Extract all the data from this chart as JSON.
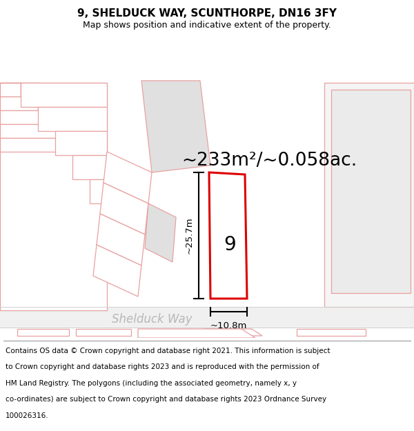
{
  "title_line1": "9, SHELDUCK WAY, SCUNTHORPE, DN16 3FY",
  "title_line2": "Map shows position and indicative extent of the property.",
  "area_text": "~233m²/~0.058ac.",
  "plot_number": "9",
  "street_name": "Shelduck Way",
  "dim_vertical": "~25.7m",
  "dim_horizontal": "~10.8m",
  "copyright_lines": [
    "Contains OS data © Crown copyright and database right 2021. This information is subject",
    "to Crown copyright and database rights 2023 and is reproduced with the permission of",
    "HM Land Registry. The polygons (including the associated geometry, namely x, y",
    "co-ordinates) are subject to Crown copyright and database rights 2023 Ordnance Survey",
    "100026316."
  ],
  "background_color": "#ffffff",
  "road_color": "#f0f0f0",
  "plot_fill": "#ffffff",
  "plot_border_color": "#dd0000",
  "block_fill": "#f0f0f0",
  "block_fill_dark": "#e0e0e0",
  "block_border": "#e8a0a0",
  "title_fontsize": 11,
  "subtitle_fontsize": 9,
  "area_fontsize": 19,
  "plot_num_fontsize": 20,
  "street_fontsize": 12,
  "dim_fontsize": 9.5,
  "copyright_fontsize": 7.5
}
